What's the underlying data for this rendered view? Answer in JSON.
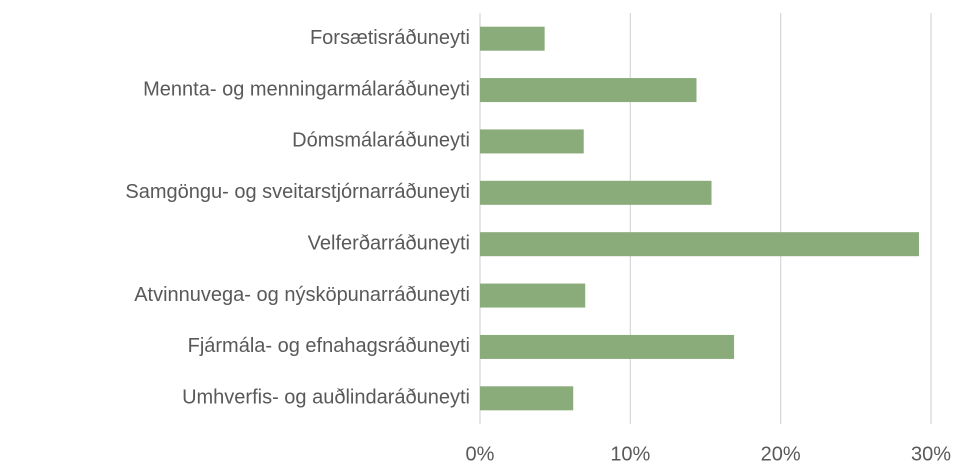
{
  "chart_data": {
    "type": "hbar",
    "categories": [
      "Forsætisráðuneyti",
      "Mennta- og menningarmálaráðuneyti",
      "Dómsmálaráðuneyti",
      "Samgöngu- og sveitarstjórnarráðuneyti",
      "Velferðarráðuneyti",
      "Atvinnuvega- og nýsköpunarráðuneyti",
      "Fjármála- og efnahagsráðuneyti",
      "Umhverfis- og auðlindaráðuneyti"
    ],
    "values": [
      4.3,
      14.4,
      6.9,
      15.4,
      29.2,
      7.0,
      16.9,
      6.2
    ],
    "color": "#8aab7a",
    "xlim": [
      0,
      30
    ],
    "xticks": [
      {
        "value": 0,
        "label": "0%"
      },
      {
        "value": 10,
        "label": "10%"
      },
      {
        "value": 20,
        "label": "20%"
      },
      {
        "value": 30,
        "label": "30%"
      }
    ],
    "grid": true
  }
}
